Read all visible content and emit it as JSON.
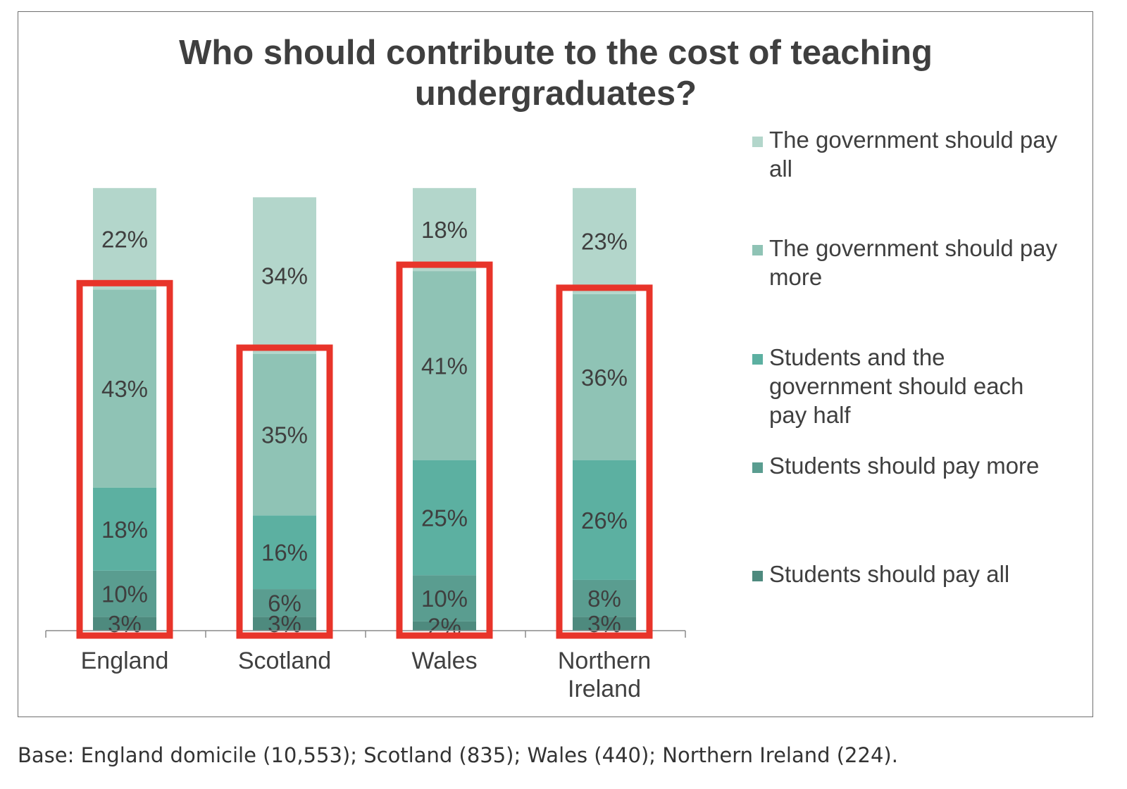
{
  "chart_data": {
    "type": "bar",
    "stacked": true,
    "title": "Who should contribute to the cost of teaching undergraduates?",
    "title_lines": [
      "Who should contribute to the cost of teaching",
      "undergraduates?"
    ],
    "categories": [
      "England",
      "Scotland",
      "Wales",
      "Northern Ireland"
    ],
    "category_lines": [
      [
        "England"
      ],
      [
        "Scotland"
      ],
      [
        "Wales"
      ],
      [
        "Northern",
        "Ireland"
      ]
    ],
    "ylim": [
      0,
      100
    ],
    "grid": false,
    "legend_position": "right",
    "series": [
      {
        "name": "Students should pay all",
        "values": [
          3,
          3,
          2,
          3
        ],
        "labels": [
          "3%",
          "3%",
          "2%",
          "3%"
        ],
        "color": "#4e8a7e"
      },
      {
        "name": "Students should pay more",
        "values": [
          10,
          6,
          10,
          8
        ],
        "labels": [
          "10%",
          "6%",
          "10%",
          "8%"
        ],
        "color": "#5a9d90"
      },
      {
        "name": "Students and the government should each pay half",
        "values": [
          18,
          16,
          25,
          26
        ],
        "labels": [
          "18%",
          "16%",
          "25%",
          "26%"
        ],
        "color": "#5cb0a1"
      },
      {
        "name": "The government should pay more",
        "values": [
          43,
          35,
          41,
          36
        ],
        "labels": [
          "43%",
          "35%",
          "41%",
          "36%"
        ],
        "color": "#8fc3b5"
      },
      {
        "name": "The government should pay all",
        "values": [
          22,
          34,
          18,
          23
        ],
        "labels": [
          "22%",
          "34%",
          "18%",
          "23%"
        ],
        "color": "#b3d6cb"
      }
    ],
    "legend": [
      {
        "lines": [
          "The government should pay",
          "all"
        ],
        "color": "#b3d6cb"
      },
      {
        "lines": [
          "The government should pay",
          "more"
        ],
        "color": "#8fc3b5"
      },
      {
        "lines": [
          "Students and the",
          "government should each",
          "pay half"
        ],
        "color": "#5cb0a1"
      },
      {
        "lines": [
          "Students should pay more"
        ],
        "color": "#5a9d90"
      },
      {
        "lines": [
          "Students should pay all"
        ],
        "color": "#4e8a7e"
      }
    ],
    "highlight_color": "#e8342a"
  },
  "footnote": "Base: England domicile (10,553); Scotland (835); Wales (440); Northern Ireland (224)."
}
